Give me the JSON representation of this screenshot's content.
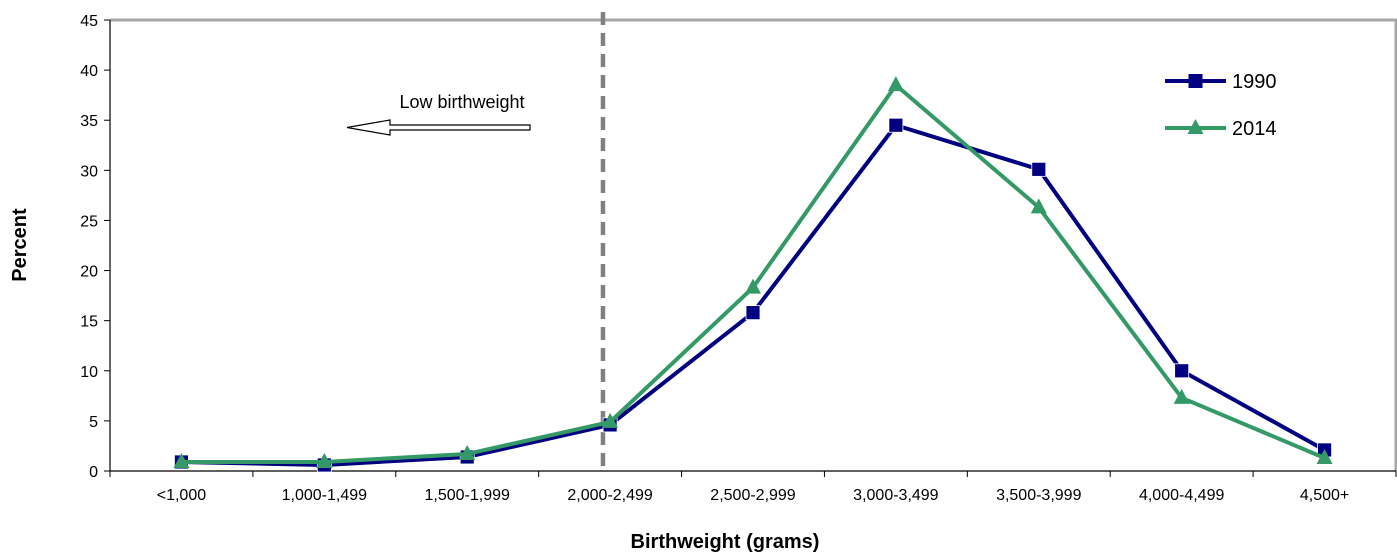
{
  "chart_data": {
    "type": "line",
    "title": "",
    "xlabel": "Birthweight (grams)",
    "ylabel": "Percent",
    "ylim": [
      0,
      45
    ],
    "yticks": [
      0,
      5,
      10,
      15,
      20,
      25,
      30,
      35,
      40,
      45
    ],
    "categories": [
      "<1,000",
      "1,000-1,499",
      "1,500-1,999",
      "2,000-2,499",
      "2,500-2,999",
      "3,000-3,499",
      "3,500-3,999",
      "4,000-4,499",
      "4,500+"
    ],
    "series": [
      {
        "name": "1990",
        "color": "#000080",
        "marker": "square",
        "values": [
          0.9,
          0.6,
          1.4,
          4.6,
          15.8,
          34.5,
          30.1,
          10.0,
          2.1
        ]
      },
      {
        "name": "2014",
        "color": "#339966",
        "marker": "triangle",
        "values": [
          0.9,
          0.9,
          1.7,
          4.9,
          18.3,
          38.5,
          26.3,
          7.3,
          1.3
        ]
      }
    ],
    "grid": false,
    "legend_position": "top-right",
    "annotations": [
      {
        "text": "Low birthweight",
        "arrow": "left"
      }
    ],
    "reference_line": {
      "style": "dashed",
      "color": "#808080"
    }
  }
}
